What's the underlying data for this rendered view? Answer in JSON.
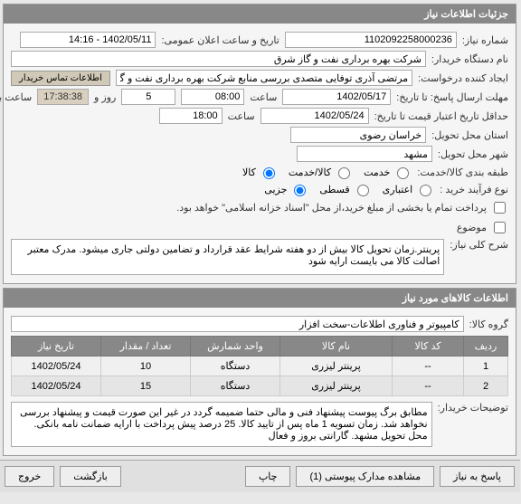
{
  "panel1": {
    "title": "جزئیات اطلاعات نیاز",
    "req_number_label": "شماره نیاز:",
    "req_number": "1102092258000236",
    "announce_label": "تاریخ و ساعت اعلان عمومی:",
    "announce_value": "1402/05/11 - 14:16",
    "buyer_label": "نام دستگاه خریدار:",
    "buyer_value": "شرکت بهره برداری نفت و گاز شرق",
    "creator_label": "ایجاد کننده درخواست:",
    "creator_value": "مرتضی آذری توفایی متصدی بررسی منابع شرکت بهره برداری نفت و گاز شرق",
    "contact_btn": "اطلاعات تماس خریدار",
    "deadline_label": "مهلت ارسال پاسخ: تا تاریخ:",
    "deadline_date": "1402/05/17",
    "time_label": "ساعت",
    "deadline_time": "08:00",
    "days_count": "5",
    "days_and": "روز و",
    "countdown": "17:38:38",
    "remaining": "ساعت باقی مانده",
    "credit_label": "حداقل تاریخ اعتبار قیمت تا تاریخ:",
    "credit_date": "1402/05/24",
    "credit_time": "18:00",
    "province_label": "استان محل تحویل:",
    "province_value": "خراسان رضوی",
    "city_label": "شهر محل تحویل:",
    "city_value": "مشهد",
    "service_class_label": "طبقه بندی کالا/خدمت:",
    "radio_service": "خدمت",
    "radio_both": "کالا/خدمت",
    "radio_goods": "کالا",
    "service_selected": "goods",
    "purchase_type_label": "نوع فرآیند خرید :",
    "radio_credit": "اعتباری",
    "radio_installment": "قسطی",
    "radio_partial": "جزیی",
    "purchase_selected": "partial",
    "payment_note": "پرداخت تمام یا بخشی از مبلغ خرید،از محل \"اسناد خزانه اسلامی\" خواهد بود.",
    "is_attached": "موضوع",
    "desc_label": "شرح کلی نیاز:",
    "desc_value": "پرینتر.زمان تحویل کالا بیش از دو هفته شرایط عقد قرارداد و تضامین دولتی جاری میشود. مدرک معتبر اصالت کالا می بایست ارایه شود"
  },
  "panel2": {
    "title": "اطلاعات کالاهای مورد نیاز",
    "group_label": "گروه کالا:",
    "group_value": "کامپیوتر و فناوری اطلاعات-سخت افزار",
    "columns": [
      "ردیف",
      "کد کالا",
      "نام کالا",
      "واحد شمارش",
      "تعداد / مقدار",
      "تاریخ نیاز"
    ],
    "col_widths": [
      "40px",
      "70px",
      "auto",
      "90px",
      "90px",
      "90px"
    ],
    "rows": [
      [
        "1",
        "--",
        "پرینتر لیزری",
        "دستگاه",
        "10",
        "1402/05/24"
      ],
      [
        "2",
        "--",
        "پرینتر لیزری",
        "دستگاه",
        "15",
        "1402/05/24"
      ]
    ],
    "notes_label": "توضیحات خریدار:",
    "notes_value": "مطابق برگ پیوست پیشنهاد فنی و مالی حتما ضمیمه گردد در غیر این صورت قیمت و پیشنهاد بررسی نخواهد شد. زمان تسویه 1 ماه پس از تایید کالا. 25 درصد پیش پرداخت با ارایه ضمانت نامه بانکی. محل تحویل مشهد. گارانتی بروز و فعال"
  },
  "footer": {
    "respond": "پاسخ به نیاز",
    "attachments": "مشاهده مدارک پیوستی (1)",
    "print": "چاپ",
    "back": "بازگشت",
    "exit": "خروج"
  },
  "colors": {
    "header_bg": "#888888",
    "header_fg": "#ffffff",
    "countdown_bg": "#d9d0c0",
    "btn_bg": "#d0c9b8"
  }
}
